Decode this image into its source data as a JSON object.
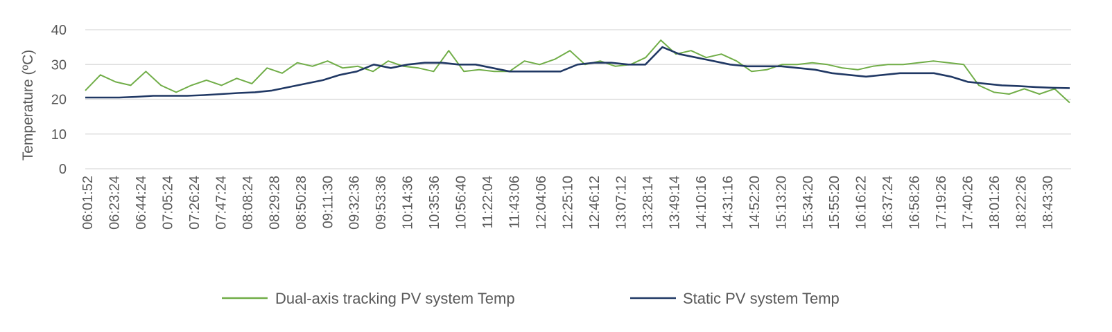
{
  "chart_data": {
    "type": "line",
    "ylabel": "Temperature (ºC)",
    "ylim": [
      0,
      40
    ],
    "yticks": [
      "0",
      "10",
      "20",
      "30",
      "40"
    ],
    "x_tick_labels": [
      "06:01:52",
      "06:23:24",
      "06:44:24",
      "07:05:24",
      "07:26:24",
      "07:47:24",
      "08:08:24",
      "08:29:28",
      "08:50:28",
      "09:11:30",
      "09:32:36",
      "09:53:36",
      "10:14:36",
      "10:35:36",
      "10:56:40",
      "11:22:04",
      "11:43:06",
      "12:04:06",
      "12:25:10",
      "12:46:12",
      "13:07:12",
      "13:28:14",
      "13:49:14",
      "14:10:16",
      "14:31:16",
      "14:52:20",
      "15:13:20",
      "15:34:20",
      "15:55:20",
      "16:16:22",
      "16:37:24",
      "16:58:26",
      "17:19:26",
      "17:40:26",
      "18:01:26",
      "18:22:26",
      "18:43:30"
    ],
    "grid": "horizontal",
    "legend_position": "bottom",
    "series": [
      {
        "name": "Dual-axis tracking PV system Temp",
        "color": "#70ad47",
        "values": [
          22.5,
          27,
          25,
          24,
          28,
          24,
          22,
          24,
          25.5,
          24,
          26,
          24.5,
          29,
          27.5,
          30.5,
          29.5,
          31,
          29,
          29.5,
          28,
          31,
          29.5,
          29,
          28,
          34,
          28,
          28.5,
          28,
          28,
          31,
          30,
          31.5,
          34,
          30,
          31,
          29.5,
          30,
          32,
          37,
          33,
          34,
          32,
          33,
          31,
          28,
          28.5,
          30,
          30,
          30.5,
          30,
          29,
          28.5,
          29.5,
          30,
          30,
          30.5,
          31,
          30.5,
          30,
          24,
          22,
          21.5,
          23,
          21.5,
          23,
          19
        ]
      },
      {
        "name": "Static PV system Temp",
        "color": "#203864",
        "values": [
          20.5,
          20.5,
          20.5,
          20.7,
          21,
          21,
          21,
          21.2,
          21.5,
          21.8,
          22,
          22.5,
          23.5,
          24.5,
          25.5,
          27,
          28,
          30,
          29,
          30,
          30.5,
          30.5,
          30,
          30,
          29,
          28,
          28,
          28,
          28,
          30,
          30.5,
          30.5,
          30,
          30,
          35,
          33,
          32,
          31,
          30,
          29.5,
          29.5,
          29.5,
          29,
          28.5,
          27.5,
          27,
          26.5,
          27,
          27.5,
          27.5,
          27.5,
          26.5,
          25,
          24.5,
          24,
          23.8,
          23.5,
          23.3,
          23.2
        ]
      }
    ]
  }
}
